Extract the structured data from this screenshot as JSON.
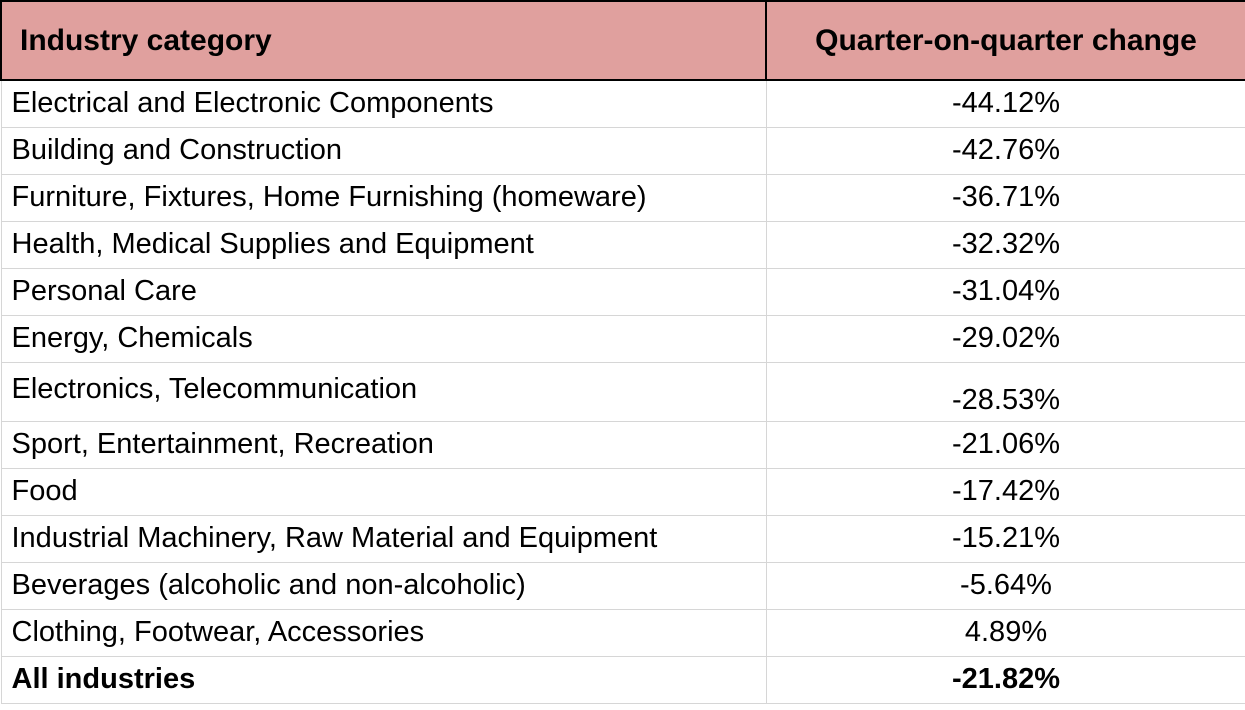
{
  "table": {
    "headers": {
      "category": "Industry category",
      "change": "Quarter-on-quarter change"
    },
    "rows": [
      {
        "category": "Electrical and Electronic Components",
        "change": "-44.12%"
      },
      {
        "category": "Building and Construction",
        "change": "-42.76%"
      },
      {
        "category": "Furniture, Fixtures, Home Furnishing (homeware)",
        "change": "-36.71%"
      },
      {
        "category": "Health, Medical Supplies and Equipment",
        "change": "-32.32%"
      },
      {
        "category": "Personal Care",
        "change": "-31.04%"
      },
      {
        "category": "Energy, Chemicals",
        "change": "-29.02%"
      },
      {
        "category": "Electronics, Telecommunication",
        "change": "-28.53%"
      },
      {
        "category": "Sport, Entertainment, Recreation",
        "change": "-21.06%"
      },
      {
        "category": "Food",
        "change": "-17.42%"
      },
      {
        "category": "Industrial Machinery, Raw Material and Equipment",
        "change": "-15.21%"
      },
      {
        "category": "Beverages (alcoholic and non-alcoholic)",
        "change": "-5.64%"
      },
      {
        "category": "Clothing, Footwear, Accessories",
        "change": "4.89%"
      }
    ],
    "total": {
      "category": "All industries",
      "change": "-21.82%"
    }
  },
  "colors": {
    "header_background": "#e0a09e",
    "grid_line": "#d6d6d6"
  }
}
